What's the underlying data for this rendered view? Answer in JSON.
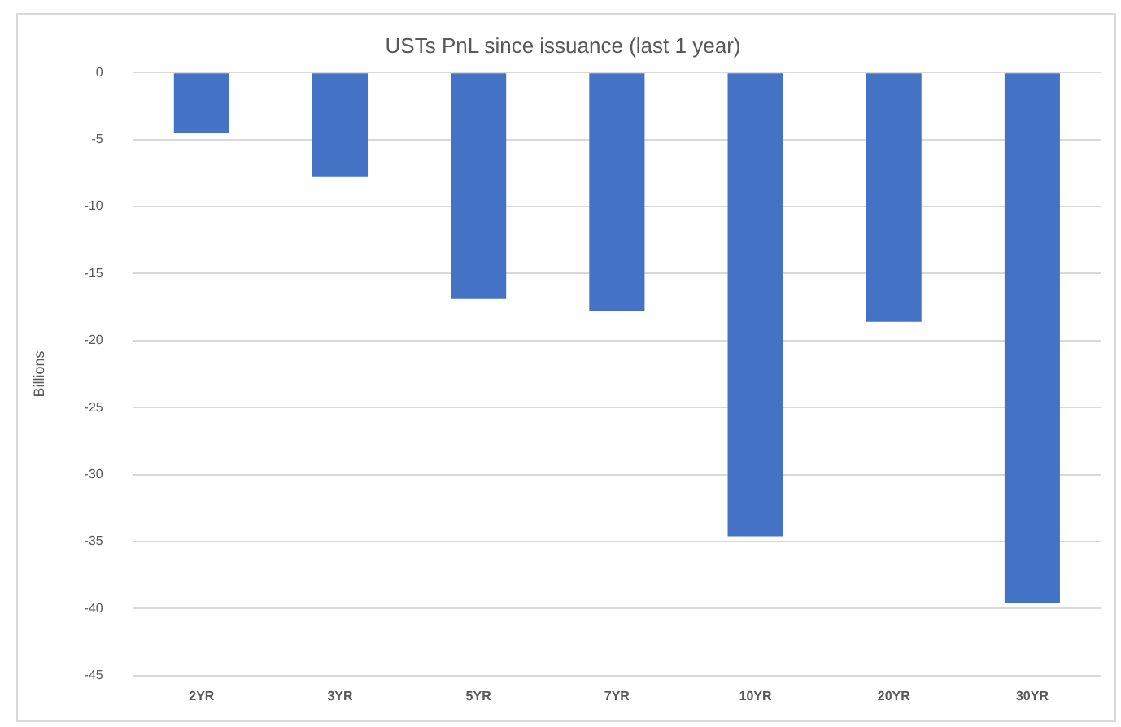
{
  "chart_data": {
    "type": "bar",
    "title": "USTs PnL since issuance (last 1 year)",
    "ylabel": "Billions",
    "categories": [
      "2YR",
      "3YR",
      "5YR",
      "7YR",
      "10YR",
      "20YR",
      "30YR"
    ],
    "values": [
      -4.5,
      -7.8,
      -16.9,
      -17.8,
      -34.6,
      -18.6,
      -39.6
    ],
    "color": "#4472c4",
    "ylim": [
      -45,
      0
    ],
    "yticks": [
      -45,
      -40,
      -35,
      -30,
      -25,
      -20,
      -15,
      -10,
      -5,
      0
    ],
    "grid": "y",
    "legend": false
  }
}
